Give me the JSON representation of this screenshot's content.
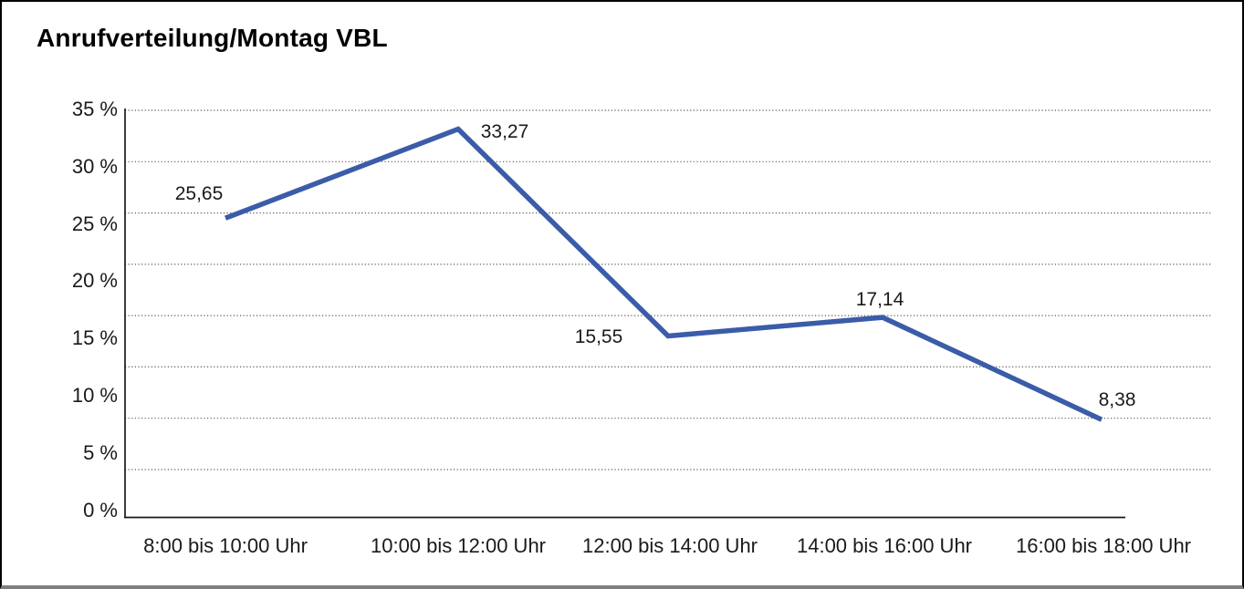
{
  "title": "Anrufverteilung/Montag VBL",
  "chart_data": {
    "type": "line",
    "title": "Anrufverteilung/Montag VBL",
    "categories": [
      "8:00 bis 10:00 Uhr",
      "10:00 bis 12:00 Uhr",
      "12:00 bis 14:00 Uhr",
      "14:00 bis 16:00 Uhr",
      "16:00 bis 18:00 Uhr"
    ],
    "values": [
      25.65,
      33.27,
      15.55,
      17.14,
      8.38
    ],
    "point_labels": [
      "25,65",
      "33,27",
      "15,55",
      "17,14",
      "8,38"
    ],
    "yticks": [
      "35 %",
      "30 %",
      "25 %",
      "20 %",
      "15 %",
      "10 %",
      "5 %",
      "0 %"
    ],
    "ylim": [
      0,
      35
    ],
    "xlabel": "",
    "ylabel": "",
    "grid": "horizontal-dotted",
    "legend": "none",
    "line_color": "#3B5CA8",
    "axis_color": "#1a1a1a",
    "gridline_color": "#5a5a5a"
  }
}
